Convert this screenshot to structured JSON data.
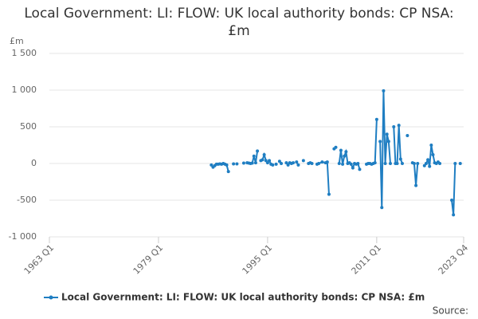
{
  "chart_data": {
    "type": "line",
    "title": "Local Government: LI: FLOW: UK local authority bonds: CP NSA: £m",
    "y_label": "£m",
    "source_label": "Source:",
    "xlim": [
      "1963 Q1",
      "2023 Q4"
    ],
    "xticks": [
      "1963 Q1",
      "1979 Q1",
      "1995 Q1",
      "2011 Q1",
      "2023 Q4"
    ],
    "ylim": [
      -1000,
      1500
    ],
    "yticks": [
      {
        "value": -1000,
        "label": "-1 000"
      },
      -500,
      0,
      500,
      {
        "value": 1000,
        "label": "1 000"
      },
      {
        "value": 1500,
        "label": "1 500"
      }
    ],
    "grid": true,
    "legend": "bottom",
    "x": [
      "1986 Q4",
      "1987 Q1",
      "1987 Q2",
      "1987 Q3",
      "1987 Q4",
      "1988 Q1",
      "1988 Q2",
      "1988 Q3",
      "1988 Q4",
      "1989 Q1",
      "1989 Q2",
      "1989 Q3",
      "1990 Q1",
      "1990 Q2",
      "1990 Q3",
      "1990 Q4",
      "1991 Q3",
      "1991 Q4",
      "1992 Q1",
      "1992 Q2",
      "1992 Q3",
      "1992 Q4",
      "1993 Q1",
      "1993 Q2",
      "1993 Q3",
      "1993 Q4",
      "1994 Q1",
      "1994 Q2",
      "1994 Q3",
      "1994 Q4",
      "1995 Q1",
      "1995 Q2",
      "1995 Q3",
      "1995 Q4",
      "1996 Q1",
      "1996 Q2",
      "1996 Q3",
      "1996 Q4",
      "1997 Q1",
      "1997 Q2",
      "1997 Q4",
      "1998 Q1",
      "1998 Q2",
      "1998 Q3",
      "1998 Q4",
      "1999 Q1",
      "1999 Q2",
      "1999 Q3",
      "1999 Q4",
      "2000 Q2",
      "2000 Q3",
      "2001 Q1",
      "2001 Q2",
      "2001 Q3",
      "2002 Q1",
      "2002 Q2",
      "2002 Q3",
      "2003 Q1",
      "2003 Q3",
      "2003 Q4",
      "2004 Q1",
      "2004 Q2",
      "2004 Q4",
      "2005 Q1",
      "2005 Q2",
      "2005 Q3",
      "2005 Q4",
      "2006 Q1",
      "2006 Q2",
      "2006 Q3",
      "2006 Q4",
      "2007 Q1",
      "2007 Q2",
      "2007 Q3",
      "2007 Q4",
      "2008 Q1",
      "2008 Q2",
      "2008 Q3",
      "2008 Q4",
      "2009 Q3",
      "2009 Q4",
      "2010 Q1",
      "2010 Q2",
      "2010 Q3",
      "2010 Q4",
      "2011 Q1",
      "2011 Q2",
      "2011 Q3",
      "2011 Q4",
      "2012 Q1",
      "2012 Q2",
      "2012 Q3",
      "2012 Q4",
      "2013 Q1",
      "2013 Q2",
      "2013 Q3",
      "2013 Q4",
      "2014 Q1",
      "2014 Q2",
      "2014 Q3",
      "2014 Q4",
      "2015 Q1",
      "2015 Q3",
      "2015 Q4",
      "2016 Q2",
      "2016 Q3",
      "2016 Q4",
      "2017 Q1",
      "2017 Q2",
      "2018 Q1",
      "2018 Q2",
      "2018 Q3",
      "2018 Q4",
      "2019 Q1",
      "2019 Q2",
      "2019 Q3",
      "2019 Q4",
      "2020 Q1",
      "2020 Q2",
      "2020 Q3",
      "2022 Q1",
      "2022 Q2",
      "2022 Q3",
      "2022 Q4",
      "2023 Q2"
    ],
    "series": [
      {
        "name": "Local Government: LI: FLOW: UK local authority bonds: CP NSA: £m",
        "color": "#1f7ec2",
        "values": [
          -20,
          -50,
          -30,
          -10,
          -10,
          -5,
          -10,
          0,
          -10,
          -20,
          -110,
          null,
          -5,
          null,
          -5,
          null,
          5,
          null,
          10,
          5,
          0,
          5,
          100,
          10,
          170,
          null,
          40,
          50,
          120,
          40,
          10,
          40,
          -10,
          -20,
          null,
          -10,
          null,
          30,
          0,
          null,
          10,
          -20,
          10,
          0,
          10,
          null,
          20,
          -20,
          null,
          40,
          null,
          0,
          10,
          0,
          null,
          -10,
          0,
          20,
          10,
          20,
          -420,
          null,
          200,
          220,
          null,
          0,
          180,
          -10,
          100,
          160,
          0,
          10,
          -10,
          -60,
          0,
          -10,
          0,
          -80,
          null,
          -10,
          0,
          0,
          -10,
          0,
          10,
          600,
          null,
          300,
          -600,
          990,
          0,
          400,
          300,
          0,
          null,
          500,
          0,
          0,
          520,
          60,
          0,
          null,
          380,
          null,
          10,
          0,
          -300,
          0,
          null,
          -30,
          0,
          50,
          -40,
          250,
          120,
          10,
          0,
          20,
          0,
          null,
          -500,
          -700,
          0,
          null,
          0
        ]
      }
    ]
  }
}
